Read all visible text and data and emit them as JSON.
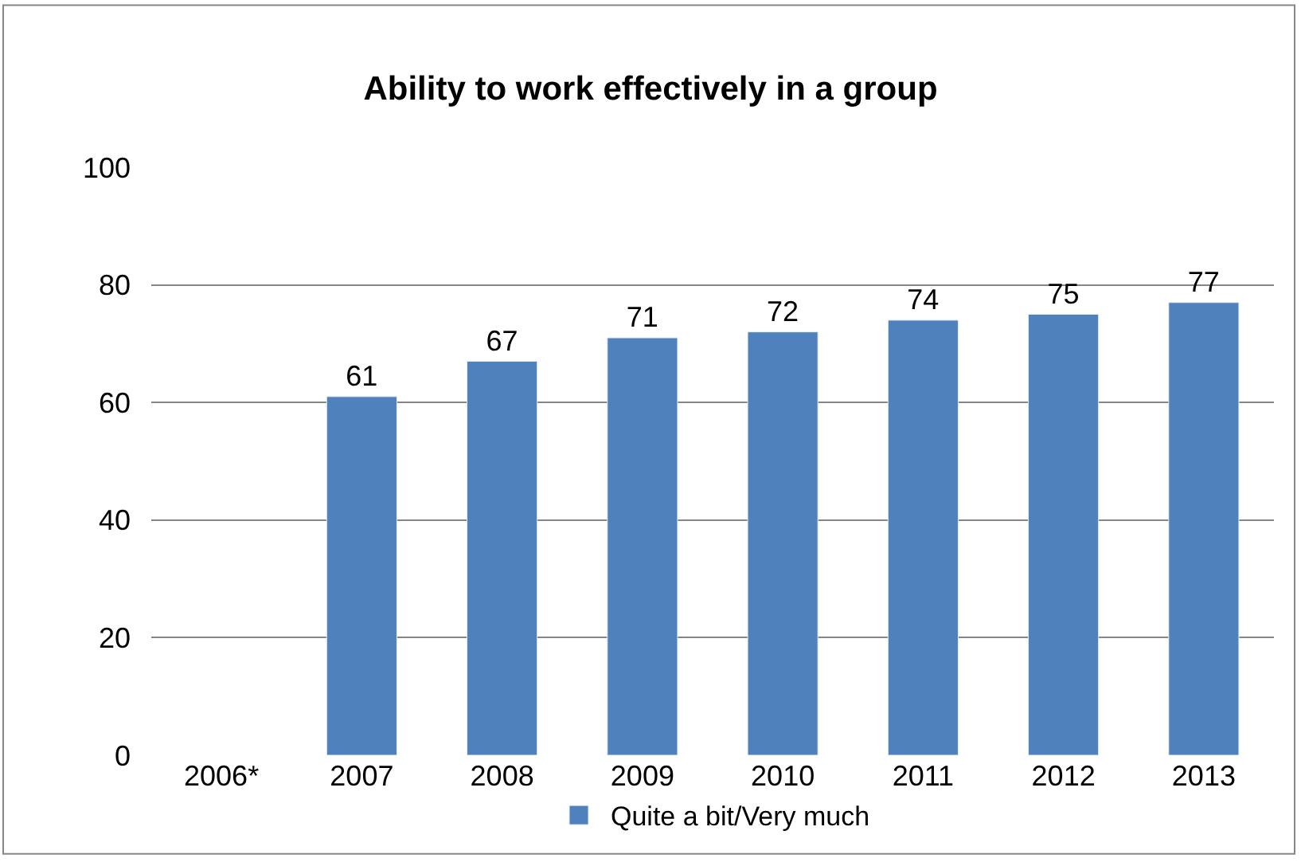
{
  "chart_data": {
    "type": "bar",
    "title": "Ability to work effectively in a group",
    "categories": [
      "2006*",
      "2007",
      "2008",
      "2009",
      "2010",
      "2011",
      "2012",
      "2013"
    ],
    "series": [
      {
        "name": "Quite a bit/Very much",
        "color": "#4f81bd",
        "values": [
          null,
          61,
          67,
          71,
          72,
          74,
          75,
          77
        ]
      }
    ],
    "ylim": [
      0,
      100
    ],
    "yticks": [
      0,
      20,
      40,
      60,
      80,
      100
    ],
    "grid": "y",
    "legend": "bottom",
    "data_labels": true
  }
}
